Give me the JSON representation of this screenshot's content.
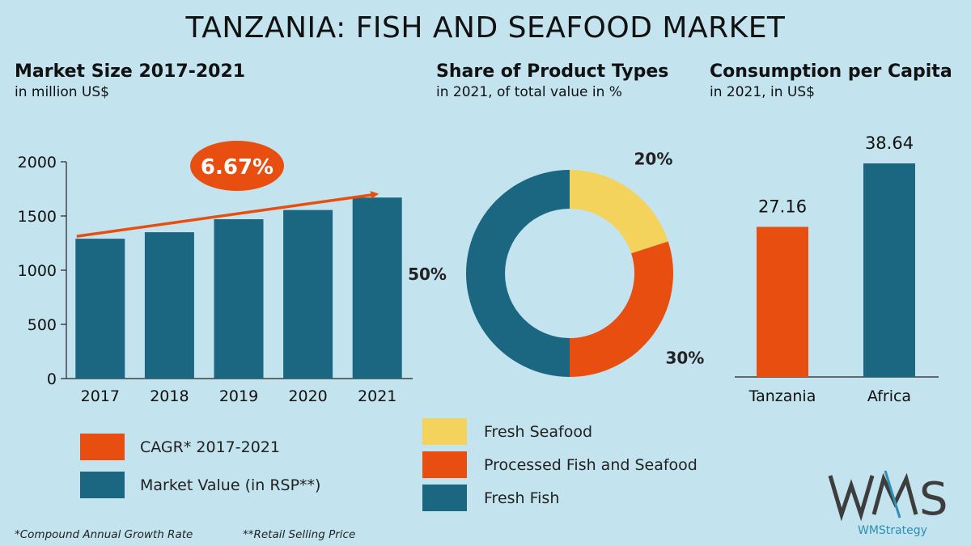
{
  "title": "TANZANIA: FISH AND SEAFOOD MARKET",
  "colors": {
    "background": "#c3e3ee",
    "teal": "#1b6680",
    "orange": "#e84e0f",
    "yellow": "#f3d35c",
    "logo_grey": "#3d3d3d",
    "logo_blue": "#2c8fb4"
  },
  "chart_data": [
    {
      "type": "bar",
      "title": "Market Size 2017-2021",
      "subtitle": "in million US$",
      "categories": [
        "2017",
        "2018",
        "2019",
        "2020",
        "2021"
      ],
      "series": [
        {
          "name": "Market Value (in RSP**)",
          "values": [
            1290,
            1350,
            1470,
            1555,
            1670
          ]
        }
      ],
      "ylim": [
        0,
        2000
      ],
      "yticks": [
        "0",
        "500",
        "1000",
        "1500",
        "2000"
      ],
      "annotation": {
        "label": "6.67%",
        "meaning": "CAGR* 2017-2021"
      }
    },
    {
      "type": "pie",
      "title": "Share of Product Types",
      "subtitle": "in 2021, of total value in %",
      "slices": [
        {
          "name": "Fresh Seafood",
          "value": 20,
          "label": "20%",
          "color": "#f3d35c"
        },
        {
          "name": "Processed Fish and Seafood",
          "value": 30,
          "label": "30%",
          "color": "#e84e0f"
        },
        {
          "name": "Fresh Fish",
          "value": 50,
          "label": "50%",
          "color": "#1b6680"
        }
      ]
    },
    {
      "type": "bar",
      "title": "Consumption per Capita",
      "subtitle": "in 2021, in US$",
      "categories": [
        "Tanzania",
        "Africa"
      ],
      "values": [
        27.16,
        38.64
      ],
      "labels": [
        "27.16",
        "38.64"
      ],
      "colors": [
        "#e84e0f",
        "#1b6680"
      ]
    }
  ],
  "legend_left": [
    {
      "label": "CAGR* 2017-2021",
      "color": "#e84e0f"
    },
    {
      "label": "Market Value (in RSP**)",
      "color": "#1b6680"
    }
  ],
  "legend_middle": [
    {
      "label": "Fresh Seafood",
      "color": "#f3d35c"
    },
    {
      "label": "Processed Fish and Seafood",
      "color": "#e84e0f"
    },
    {
      "label": "Fresh Fish",
      "color": "#1b6680"
    }
  ],
  "footnotes": {
    "cagr": "*Compound Annual Growth Rate",
    "rsp": "**Retail Selling Price"
  },
  "logo": {
    "mark": "WMS",
    "text": "WMStrategy"
  }
}
